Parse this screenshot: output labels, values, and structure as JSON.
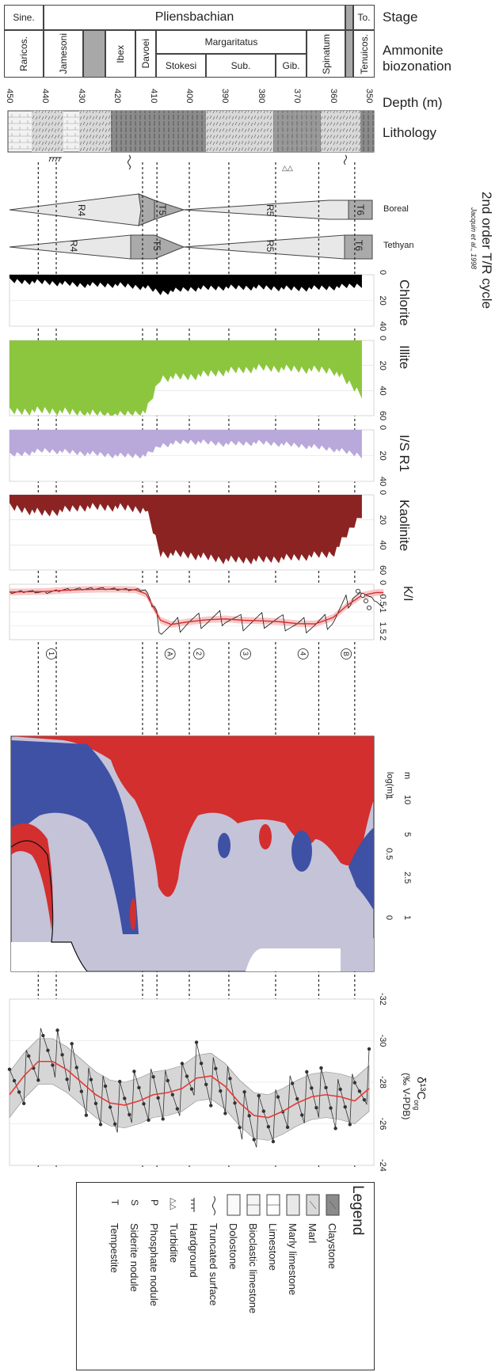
{
  "header": {
    "substages": [
      "Sine.",
      "Pliensbachian",
      "To."
    ],
    "stage_label": "Stage",
    "zones": [
      "Raricos.",
      "Jamesoni",
      "Ibex",
      "Davoei",
      "Margaritatus",
      "Spinatum",
      "Tenuicos."
    ],
    "subzones": [
      "Stokesi",
      "Sub.",
      "Gib."
    ],
    "biozonation_label_1": "Ammonite",
    "biozonation_label_2": "biozonation",
    "depth_label": "Depth (m)",
    "depth_ticks": [
      "450",
      "440",
      "430",
      "420",
      "410",
      "400",
      "390",
      "380",
      "370",
      "360",
      "350"
    ],
    "lithology_label": "Lithology"
  },
  "cycles": {
    "title": "2nd order T/R cycle",
    "citation": "Jacquin et al., 1998",
    "boreal_label": "Boreal",
    "tethyan_label": "Tethyan",
    "segments": [
      "R4",
      "T5",
      "R5",
      "T6"
    ]
  },
  "mineral_panels": [
    {
      "name": "Chlorite",
      "ticks": [
        "0",
        "20",
        "40"
      ],
      "color": "#000000"
    },
    {
      "name": "Illite",
      "ticks": [
        "0",
        "20",
        "40",
        "60"
      ],
      "color": "#8cc63f"
    },
    {
      "name": "I/S R1",
      "ticks": [
        "0",
        "20",
        "40"
      ],
      "color": "#b9a9db"
    },
    {
      "name": "Kaolinite",
      "ticks": [
        "0",
        "20",
        "40",
        "60"
      ],
      "color": "#8b2323"
    }
  ],
  "ki_panel": {
    "name": "K/I",
    "ticks": [
      "0",
      "0.5",
      "1",
      "1.5",
      "2"
    ],
    "markers": [
      "1",
      "A",
      "2",
      "3",
      "4",
      "B"
    ]
  },
  "wavelet": {
    "axis_label": "log(m)",
    "unit_label": "m",
    "log_ticks": [
      "0",
      "0.5",
      "1"
    ],
    "m_ticks": [
      "1",
      "2.5",
      "5",
      "10"
    ],
    "colors": {
      "high": "#d32f2f",
      "mid": "#c5c3d8",
      "low": "#3f51a5"
    }
  },
  "carbon": {
    "label_main": "δ¹³C",
    "label_sub": "org",
    "label_units": "(‰ V-PDB)",
    "ticks": [
      "-32",
      "-30",
      "-28",
      "-26",
      "-24"
    ]
  },
  "legend": {
    "title": "Legend",
    "items": [
      {
        "symbol": "claystone",
        "label": "Claystone"
      },
      {
        "symbol": "marl",
        "label": "Marl"
      },
      {
        "symbol": "marly-limestone",
        "label": "Marly limestone"
      },
      {
        "symbol": "limestone",
        "label": "Limestone"
      },
      {
        "symbol": "bioclastic-limestone",
        "label": "Bioclastic limestone"
      },
      {
        "symbol": "dolostone",
        "label": "Dolostone"
      },
      {
        "symbol": "truncated-surface",
        "label": "Truncated surface"
      },
      {
        "symbol": "hardground",
        "label": "Hardground"
      },
      {
        "symbol": "turbidite",
        "label": "Turbidite"
      },
      {
        "symbol": "P",
        "label": "Phosphate nodule"
      },
      {
        "symbol": "S",
        "label": "Siderite nodule"
      },
      {
        "symbol": "T",
        "label": "Tempestite"
      }
    ]
  },
  "chart_data": [
    {
      "type": "area",
      "title": "Chlorite",
      "x_label": "Depth (m)",
      "x": [
        450,
        440,
        430,
        420,
        412,
        408,
        400,
        390,
        380,
        370,
        360,
        352
      ],
      "values": [
        5,
        6,
        8,
        8,
        10,
        14,
        11,
        10,
        10,
        11,
        10,
        8
      ],
      "ylim": [
        0,
        40
      ]
    },
    {
      "type": "area",
      "title": "Illite",
      "x_label": "Depth (m)",
      "x": [
        450,
        440,
        430,
        420,
        412,
        408,
        400,
        390,
        380,
        370,
        360,
        352
      ],
      "values": [
        57,
        56,
        58,
        60,
        57,
        30,
        29,
        25,
        22,
        23,
        24,
        43
      ],
      "ylim": [
        0,
        60
      ]
    },
    {
      "type": "area",
      "title": "I/S R1",
      "x_label": "Depth (m)",
      "x": [
        450,
        440,
        430,
        420,
        412,
        408,
        400,
        390,
        380,
        370,
        360,
        352
      ],
      "values": [
        20,
        16,
        18,
        20,
        20,
        12,
        9,
        11,
        10,
        12,
        15,
        20
      ],
      "ylim": [
        0,
        40
      ]
    },
    {
      "type": "area",
      "title": "Kaolinite",
      "x_label": "Depth (m)",
      "x": [
        450,
        440,
        430,
        420,
        412,
        408,
        400,
        390,
        380,
        370,
        360,
        352
      ],
      "values": [
        10,
        15,
        10,
        10,
        12,
        47,
        48,
        52,
        52,
        50,
        47,
        15
      ],
      "ylim": [
        0,
        60
      ]
    },
    {
      "type": "line",
      "title": "K/I",
      "x_label": "Depth (m)",
      "x": [
        450,
        445,
        440,
        435,
        430,
        425,
        420,
        415,
        412,
        408,
        405,
        400,
        395,
        390,
        385,
        380,
        375,
        370,
        365,
        360,
        356,
        352,
        348,
        346
      ],
      "values": [
        0.3,
        0.25,
        0.3,
        0.2,
        0.17,
        0.15,
        0.18,
        0.2,
        0.2,
        1.6,
        1.55,
        1.35,
        1.3,
        1.2,
        1.4,
        1.3,
        1.35,
        1.5,
        1.45,
        1.3,
        0.6,
        0.3,
        0.6,
        0.9
      ],
      "trend": [
        0.28,
        0.27,
        0.26,
        0.22,
        0.19,
        0.18,
        0.18,
        0.2,
        0.35,
        1.3,
        1.45,
        1.35,
        1.28,
        1.25,
        1.3,
        1.32,
        1.35,
        1.42,
        1.43,
        1.2,
        0.75,
        0.4,
        0.3,
        0.3
      ],
      "ylim": [
        0,
        2
      ]
    },
    {
      "type": "line",
      "title": "δ13Corg",
      "x_label": "Depth (m)",
      "ylabel": "(‰ V-PDB)",
      "x": [
        450,
        446,
        442,
        438,
        434,
        430,
        426,
        422,
        418,
        414,
        410,
        406,
        402,
        398,
        394,
        390,
        386,
        382,
        378,
        374,
        370,
        366,
        362,
        358,
        354,
        350
      ],
      "values": [
        -27.3,
        -28.3,
        -29.2,
        -29.7,
        -28.8,
        -28.0,
        -27.2,
        -26.8,
        -27.0,
        -27.3,
        -27.6,
        -27.2,
        -27.8,
        -28.6,
        -28.2,
        -27.6,
        -26.7,
        -25.9,
        -26.3,
        -26.8,
        -27.2,
        -27.5,
        -27.3,
        -27.0,
        -27.1,
        -28.5
      ],
      "trend": [
        -27.4,
        -28.3,
        -29.0,
        -29.0,
        -28.6,
        -28.0,
        -27.4,
        -27.0,
        -26.9,
        -27.1,
        -27.4,
        -27.5,
        -27.7,
        -28.2,
        -28.3,
        -27.8,
        -27.0,
        -26.4,
        -26.3,
        -26.6,
        -27.0,
        -27.3,
        -27.4,
        -27.3,
        -27.1,
        -27.7
      ],
      "ylim": [
        -32,
        -24
      ]
    }
  ]
}
